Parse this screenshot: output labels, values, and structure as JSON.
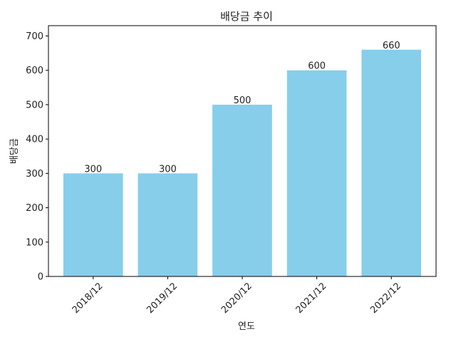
{
  "chart_data": {
    "type": "bar",
    "title": "배당금 추이",
    "xlabel": "연도",
    "ylabel": "배당금",
    "categories": [
      "2018/12",
      "2019/12",
      "2020/12",
      "2021/12",
      "2022/12"
    ],
    "values": [
      300,
      300,
      500,
      600,
      660
    ],
    "data_labels": [
      "300",
      "300",
      "500",
      "600",
      "660"
    ],
    "ylim": [
      0,
      730
    ],
    "yticks": [
      0,
      100,
      200,
      300,
      400,
      500,
      600,
      700
    ],
    "grid": false,
    "legend": "none",
    "colors": {
      "bar": "#87ceeb",
      "axis": "#000000",
      "text": "#222222"
    }
  }
}
